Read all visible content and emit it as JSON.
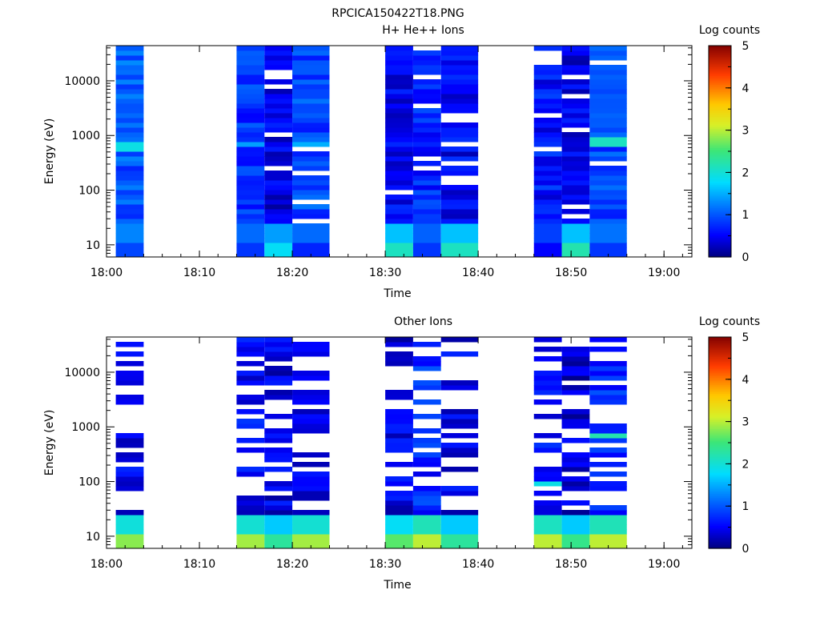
{
  "figure_title": "RPCICA150422T18.PNG",
  "chart_data": [
    {
      "type": "heatmap",
      "title": "H+ He++ Ions",
      "xlabel": "Time",
      "ylabel": "Energy (eV)",
      "x_ticks": [
        "18:00",
        "18:10",
        "18:20",
        "18:30",
        "18:40",
        "18:50",
        "19:00"
      ],
      "x_range": [
        "18:00",
        "19:03"
      ],
      "y_scale": "log",
      "y_ticks": [
        "10",
        "100",
        "1000",
        "10000"
      ],
      "y_range": [
        6,
        44000
      ],
      "colorbar": {
        "label": "Log counts",
        "range": [
          0,
          5
        ],
        "ticks": [
          "0",
          "1",
          "2",
          "3",
          "4",
          "5"
        ]
      },
      "time_columns": [
        {
          "start": "18:01",
          "end": "18:04",
          "bottom_eV": 6,
          "low_band_log_counts": 0.9,
          "mid_band_log_counts": 1.0,
          "notable": {
            "eV": 650,
            "log_counts": 1.9
          }
        },
        {
          "start": "18:14",
          "end": "18:17",
          "bottom_eV": 6,
          "low_band_log_counts": 0.8,
          "mid_band_log_counts": 0.8,
          "notable": {
            "eV": 700,
            "log_counts": 1.4
          }
        },
        {
          "start": "18:17",
          "end": "18:20",
          "bottom_eV": 6,
          "low_band_log_counts": 1.8,
          "mid_band_log_counts": 0.4,
          "notable": null
        },
        {
          "start": "18:20",
          "end": "18:24",
          "bottom_eV": 6,
          "low_band_log_counts": 0.7,
          "mid_band_log_counts": 0.9,
          "notable": {
            "eV": 700,
            "log_counts": 1.5
          }
        },
        {
          "start": "18:30",
          "end": "18:33",
          "bottom_eV": 6,
          "low_band_log_counts": 2.1,
          "mid_band_log_counts": 0.5,
          "notable": null
        },
        {
          "start": "18:33",
          "end": "18:36",
          "bottom_eV": 6,
          "low_band_log_counts": 0.8,
          "mid_band_log_counts": 0.7,
          "notable": null
        },
        {
          "start": "18:36",
          "end": "18:40",
          "bottom_eV": 6,
          "low_band_log_counts": 2.1,
          "mid_band_log_counts": 0.5,
          "notable": null
        },
        {
          "start": "18:46",
          "end": "18:49",
          "bottom_eV": 6,
          "low_band_log_counts": 0.5,
          "mid_band_log_counts": 0.6,
          "notable": null
        },
        {
          "start": "18:49",
          "end": "18:52",
          "bottom_eV": 6,
          "low_band_log_counts": 2.2,
          "mid_band_log_counts": 0.4,
          "notable": null
        },
        {
          "start": "18:52",
          "end": "18:56",
          "bottom_eV": 6,
          "low_band_log_counts": 0.8,
          "mid_band_log_counts": 0.9,
          "notable": {
            "eV": 750,
            "log_counts": 2.1
          }
        }
      ]
    },
    {
      "type": "heatmap",
      "title": "Other Ions",
      "xlabel": "Time",
      "ylabel": "Energy (eV)",
      "x_ticks": [
        "18:00",
        "18:10",
        "18:20",
        "18:30",
        "18:40",
        "18:50",
        "19:00"
      ],
      "x_range": [
        "18:00",
        "19:03"
      ],
      "y_scale": "log",
      "y_ticks": [
        "10",
        "100",
        "1000",
        "10000"
      ],
      "y_range": [
        6,
        44000
      ],
      "colorbar": {
        "label": "Log counts",
        "range": [
          0,
          5
        ],
        "ticks": [
          "0",
          "1",
          "2",
          "3",
          "4",
          "5"
        ]
      },
      "time_columns": [
        {
          "start": "18:01",
          "end": "18:04",
          "bottom_eV": 6,
          "low_band_log_counts": 2.8,
          "mid_band_log_counts": 0.5,
          "notable": null
        },
        {
          "start": "18:14",
          "end": "18:17",
          "bottom_eV": 6,
          "low_band_log_counts": 2.9,
          "mid_band_log_counts": 0.5,
          "notable": null
        },
        {
          "start": "18:17",
          "end": "18:20",
          "bottom_eV": 6,
          "low_band_log_counts": 2.3,
          "mid_band_log_counts": 0.4,
          "notable": null
        },
        {
          "start": "18:20",
          "end": "18:24",
          "bottom_eV": 6,
          "low_band_log_counts": 2.9,
          "mid_band_log_counts": 0.5,
          "notable": null
        },
        {
          "start": "18:30",
          "end": "18:33",
          "bottom_eV": 6,
          "low_band_log_counts": 2.6,
          "mid_band_log_counts": 0.4,
          "notable": null
        },
        {
          "start": "18:33",
          "end": "18:36",
          "bottom_eV": 6,
          "low_band_log_counts": 3.0,
          "mid_band_log_counts": 0.7,
          "notable": {
            "eV": 2000,
            "log_counts": 1.3
          }
        },
        {
          "start": "18:36",
          "end": "18:40",
          "bottom_eV": 6,
          "low_band_log_counts": 2.3,
          "mid_band_log_counts": 0.4,
          "notable": null
        },
        {
          "start": "18:46",
          "end": "18:49",
          "bottom_eV": 6,
          "low_band_log_counts": 3.0,
          "mid_band_log_counts": 0.6,
          "notable": {
            "eV": 90,
            "log_counts": 1.9
          }
        },
        {
          "start": "18:49",
          "end": "18:52",
          "bottom_eV": 6,
          "low_band_log_counts": 2.4,
          "mid_band_log_counts": 0.3,
          "notable": null
        },
        {
          "start": "18:52",
          "end": "18:56",
          "bottom_eV": 6,
          "low_band_log_counts": 3.0,
          "mid_band_log_counts": 0.7,
          "notable": {
            "eV": 700,
            "log_counts": 2.2
          }
        }
      ]
    }
  ]
}
